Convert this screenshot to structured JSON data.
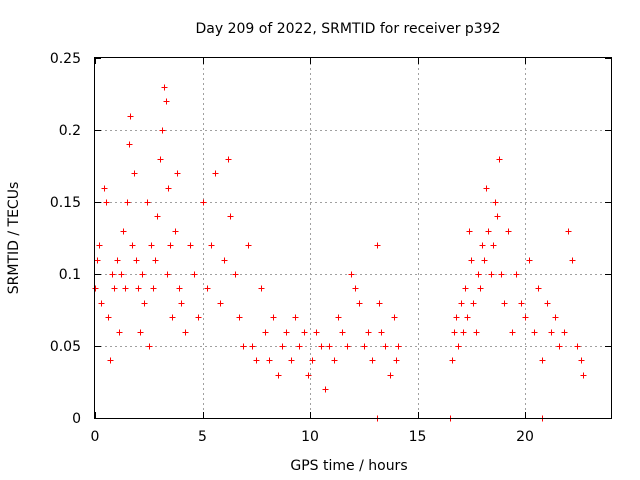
{
  "chart_data": {
    "type": "scatter",
    "title": "Day 209 of 2022, SRMTID for receiver p392",
    "xlabel": "GPS time / hours",
    "ylabel": "SRMTID / TECUs",
    "xlim": [
      0,
      24
    ],
    "ylim": [
      0,
      0.25
    ],
    "xticks": [
      0,
      5,
      10,
      15,
      20
    ],
    "xtick_labels": [
      "0",
      "5",
      "10",
      "15",
      "20"
    ],
    "yticks": [
      0,
      0.05,
      0.1,
      0.15,
      0.2,
      0.25
    ],
    "ytick_labels": [
      "0",
      "0.05",
      "0.1",
      "0.15",
      "0.2",
      "0.25"
    ],
    "grid": true,
    "marker": "+",
    "series": [
      {
        "name": "SRMTID",
        "color": "#ff0000",
        "x": [
          0.0,
          0.1,
          0.2,
          0.3,
          0.4,
          0.5,
          0.6,
          0.7,
          0.8,
          0.9,
          1.0,
          1.1,
          1.2,
          1.3,
          1.4,
          1.5,
          1.6,
          1.65,
          1.7,
          1.8,
          1.9,
          2.0,
          2.1,
          2.2,
          2.3,
          2.4,
          2.5,
          2.6,
          2.7,
          2.8,
          2.9,
          3.0,
          3.1,
          3.2,
          3.3,
          3.35,
          3.4,
          3.5,
          3.6,
          3.7,
          3.8,
          3.9,
          4.0,
          4.2,
          4.4,
          4.6,
          4.8,
          5.0,
          5.2,
          5.4,
          5.6,
          5.8,
          6.0,
          6.2,
          6.3,
          6.5,
          6.7,
          6.9,
          7.1,
          7.3,
          7.5,
          7.7,
          7.9,
          8.1,
          8.3,
          8.5,
          8.7,
          8.9,
          9.1,
          9.3,
          9.5,
          9.7,
          9.9,
          10.1,
          10.3,
          10.5,
          10.7,
          10.9,
          11.1,
          11.3,
          11.5,
          11.7,
          11.9,
          12.1,
          12.3,
          12.5,
          12.7,
          12.9,
          13.1,
          13.2,
          13.3,
          13.5,
          13.7,
          13.9,
          14.0,
          14.1,
          16.6,
          16.7,
          16.8,
          16.9,
          17.0,
          17.1,
          17.2,
          17.3,
          17.4,
          17.5,
          17.6,
          17.7,
          17.8,
          17.9,
          18.0,
          18.1,
          18.2,
          18.3,
          18.4,
          18.5,
          18.6,
          18.7,
          18.8,
          18.9,
          19.0,
          19.2,
          19.4,
          19.6,
          19.8,
          20.0,
          20.2,
          20.4,
          20.6,
          20.8,
          21.0,
          21.2,
          21.4,
          21.6,
          21.8,
          22.0,
          22.2,
          22.4,
          22.6,
          22.7,
          13.1,
          16.5,
          20.8
        ],
        "y": [
          0.09,
          0.11,
          0.12,
          0.08,
          0.16,
          0.15,
          0.07,
          0.04,
          0.1,
          0.09,
          0.11,
          0.06,
          0.1,
          0.13,
          0.09,
          0.15,
          0.19,
          0.21,
          0.12,
          0.17,
          0.11,
          0.09,
          0.06,
          0.1,
          0.08,
          0.15,
          0.05,
          0.12,
          0.09,
          0.11,
          0.14,
          0.18,
          0.2,
          0.23,
          0.22,
          0.1,
          0.16,
          0.12,
          0.07,
          0.13,
          0.17,
          0.09,
          0.08,
          0.06,
          0.12,
          0.1,
          0.07,
          0.15,
          0.09,
          0.12,
          0.17,
          0.08,
          0.11,
          0.18,
          0.14,
          0.1,
          0.07,
          0.05,
          0.12,
          0.05,
          0.04,
          0.09,
          0.06,
          0.04,
          0.07,
          0.03,
          0.05,
          0.06,
          0.04,
          0.07,
          0.05,
          0.06,
          0.03,
          0.04,
          0.06,
          0.05,
          0.02,
          0.05,
          0.04,
          0.07,
          0.06,
          0.05,
          0.1,
          0.09,
          0.08,
          0.05,
          0.06,
          0.04,
          0.12,
          0.08,
          0.06,
          0.05,
          0.03,
          0.07,
          0.04,
          0.05,
          0.04,
          0.06,
          0.07,
          0.05,
          0.08,
          0.06,
          0.09,
          0.07,
          0.13,
          0.11,
          0.08,
          0.06,
          0.1,
          0.09,
          0.12,
          0.11,
          0.16,
          0.13,
          0.1,
          0.12,
          0.15,
          0.14,
          0.18,
          0.1,
          0.08,
          0.13,
          0.06,
          0.1,
          0.08,
          0.07,
          0.11,
          0.06,
          0.09,
          0.04,
          0.08,
          0.06,
          0.07,
          0.05,
          0.06,
          0.13,
          0.11,
          0.05,
          0.04,
          0.03,
          0.0,
          0.0,
          0.0
        ]
      }
    ]
  }
}
